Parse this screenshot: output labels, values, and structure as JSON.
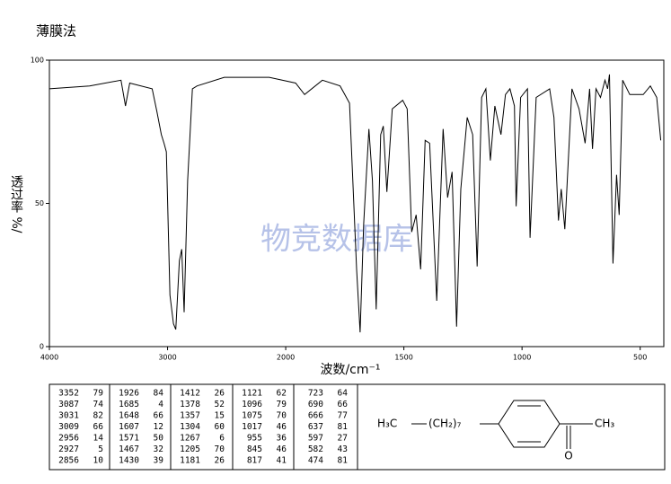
{
  "chart_data": {
    "type": "line",
    "title": "薄膜法",
    "xlabel": "波数/cm⁻¹",
    "ylabel": "透过率 %/",
    "watermark": "物竞数据库",
    "xlim": [
      4000,
      400
    ],
    "xticks": [
      4000,
      3000,
      2000,
      1500,
      1000,
      500
    ],
    "x_scale_change": 2000,
    "ylim": [
      0,
      100
    ],
    "yticks": [
      0,
      50,
      100
    ],
    "color": "#000000",
    "x": [
      4000,
      3660,
      3394,
      3356,
      3320,
      3130,
      3090,
      3053,
      3030,
      3010,
      2980,
      2950,
      2930,
      2900,
      2880,
      2860,
      2830,
      2790,
      2750,
      2520,
      2140,
      1958,
      1920,
      1845,
      1770,
      1730,
      1700,
      1685,
      1670,
      1648,
      1633,
      1617,
      1598,
      1587,
      1572,
      1549,
      1505,
      1486,
      1467,
      1448,
      1429,
      1410,
      1391,
      1361,
      1334,
      1315,
      1296,
      1277,
      1259,
      1232,
      1209,
      1190,
      1171,
      1153,
      1134,
      1115,
      1089,
      1070,
      1051,
      1032,
      1025,
      1006,
      977,
      966,
      940,
      883,
      865,
      846,
      834,
      819,
      789,
      759,
      733,
      714,
      702,
      687,
      668,
      649,
      638,
      630,
      615,
      600,
      589,
      574,
      544,
      487,
      457,
      430,
      413
    ],
    "values": [
      90,
      91,
      93,
      84,
      92,
      90,
      82,
      74,
      71,
      68,
      18,
      8,
      6,
      30,
      34,
      12,
      58,
      90,
      91,
      94,
      94,
      92,
      88,
      93,
      91,
      85,
      27,
      5,
      43,
      76,
      58,
      13,
      74,
      77,
      54,
      83,
      86,
      83,
      40,
      46,
      27,
      72,
      71,
      16,
      76,
      52,
      61,
      7,
      55,
      80,
      74,
      28,
      87,
      90,
      65,
      84,
      74,
      88,
      90,
      84,
      49,
      87,
      90,
      38,
      87,
      90,
      80,
      44,
      55,
      41,
      90,
      83,
      71,
      90,
      69,
      90,
      87,
      93,
      90,
      95,
      29,
      60,
      46,
      93,
      88,
      88,
      91,
      87,
      72
    ]
  },
  "peak_table": {
    "columns": [
      [
        [
          "3352",
          "79"
        ],
        [
          "3087",
          "74"
        ],
        [
          "3031",
          "82"
        ],
        [
          "3009",
          "66"
        ],
        [
          "2956",
          "14"
        ],
        [
          "2927",
          "5"
        ],
        [
          "2856",
          "10"
        ]
      ],
      [
        [
          "1926",
          "84"
        ],
        [
          "1685",
          "4"
        ],
        [
          "1648",
          "66"
        ],
        [
          "1607",
          "12"
        ],
        [
          "1571",
          "50"
        ],
        [
          "1467",
          "32"
        ],
        [
          "1430",
          "39"
        ]
      ],
      [
        [
          "1412",
          "26"
        ],
        [
          "1378",
          "52"
        ],
        [
          "1357",
          "15"
        ],
        [
          "1304",
          "60"
        ],
        [
          "1267",
          "6"
        ],
        [
          "1205",
          "70"
        ],
        [
          "1181",
          "26"
        ]
      ],
      [
        [
          "1121",
          "62"
        ],
        [
          "1096",
          "79"
        ],
        [
          "1075",
          "70"
        ],
        [
          "1017",
          "46"
        ],
        [
          "955",
          "36"
        ],
        [
          "845",
          "46"
        ],
        [
          "817",
          "41"
        ]
      ],
      [
        [
          "723",
          "64"
        ],
        [
          "690",
          "66"
        ],
        [
          "666",
          "77"
        ],
        [
          "637",
          "81"
        ],
        [
          "597",
          "27"
        ],
        [
          "582",
          "43"
        ],
        [
          "474",
          "81"
        ]
      ]
    ]
  },
  "structure": {
    "terminal": "H₃C",
    "chain": "(CH₂)₇",
    "methyl": "CH₃",
    "oxygen": "O"
  }
}
